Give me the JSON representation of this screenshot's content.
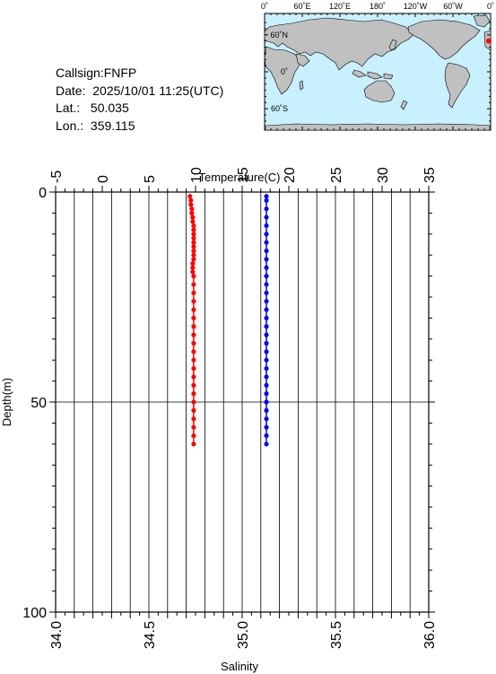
{
  "info": {
    "callsign": "Callsign:FNFP",
    "date": "Date:  2025/10/01 11:25(UTC)",
    "lat": "Lat.:   50.035",
    "lon": "Lon.:  359.115"
  },
  "map": {
    "lon_ticks": [
      "0˚",
      "60˚E",
      "120˚E",
      "180˚",
      "120˚W",
      "60˚W",
      "0˚"
    ],
    "lat_ticks": [
      "60˚N",
      "0˚",
      "60˚S"
    ],
    "ocean_color": "#c8f0ff",
    "land_color": "#c0c0c0",
    "marker": {
      "lat": 50.035,
      "lon": 359.115,
      "color": "#ff0000"
    }
  },
  "chart_data": {
    "type": "line",
    "title": "",
    "top_axis": {
      "label": "Temperature(C)",
      "range": [
        -5,
        35
      ],
      "ticks": [
        "-5",
        "0",
        "5",
        "10",
        "15",
        "20",
        "25",
        "30",
        "35"
      ]
    },
    "bottom_axis": {
      "label": "Salinity",
      "range": [
        34.0,
        36.0
      ],
      "ticks": [
        "34.0",
        "34.5",
        "35.0",
        "35.5",
        "36.0"
      ]
    },
    "y_axis": {
      "label": "Depth(m)",
      "range": [
        0,
        100
      ],
      "inverted": true,
      "ticks": [
        "0",
        "50",
        "100"
      ]
    },
    "grid": true,
    "series": [
      {
        "axis": "temperature",
        "color": "#ff0000",
        "points": [
          [
            9.4,
            1
          ],
          [
            9.5,
            2
          ],
          [
            9.5,
            3
          ],
          [
            9.6,
            4
          ],
          [
            9.6,
            5
          ],
          [
            9.7,
            6
          ],
          [
            9.7,
            7
          ],
          [
            9.8,
            8
          ],
          [
            9.8,
            9
          ],
          [
            9.8,
            10
          ],
          [
            9.8,
            11
          ],
          [
            9.8,
            12
          ],
          [
            9.8,
            13
          ],
          [
            9.8,
            14
          ],
          [
            9.8,
            15
          ],
          [
            9.8,
            16
          ],
          [
            9.7,
            17
          ],
          [
            9.7,
            18
          ],
          [
            9.7,
            19
          ],
          [
            9.8,
            20
          ],
          [
            9.8,
            22
          ],
          [
            9.8,
            24
          ],
          [
            9.8,
            26
          ],
          [
            9.8,
            28
          ],
          [
            9.8,
            30
          ],
          [
            9.8,
            32
          ],
          [
            9.8,
            34
          ],
          [
            9.8,
            36
          ],
          [
            9.8,
            38
          ],
          [
            9.8,
            40
          ],
          [
            9.8,
            42
          ],
          [
            9.8,
            44
          ],
          [
            9.8,
            46
          ],
          [
            9.8,
            48
          ],
          [
            9.8,
            50
          ],
          [
            9.8,
            52
          ],
          [
            9.8,
            54
          ],
          [
            9.8,
            56
          ],
          [
            9.8,
            58
          ],
          [
            9.8,
            60
          ]
        ]
      },
      {
        "axis": "salinity",
        "color": "#0000ff",
        "points": [
          [
            35.13,
            1
          ],
          [
            35.13,
            2
          ],
          [
            35.13,
            4
          ],
          [
            35.13,
            6
          ],
          [
            35.13,
            8
          ],
          [
            35.13,
            10
          ],
          [
            35.13,
            12
          ],
          [
            35.13,
            14
          ],
          [
            35.13,
            16
          ],
          [
            35.13,
            18
          ],
          [
            35.13,
            20
          ],
          [
            35.13,
            22
          ],
          [
            35.13,
            24
          ],
          [
            35.13,
            26
          ],
          [
            35.13,
            28
          ],
          [
            35.13,
            30
          ],
          [
            35.13,
            32
          ],
          [
            35.13,
            34
          ],
          [
            35.13,
            36
          ],
          [
            35.13,
            38
          ],
          [
            35.13,
            40
          ],
          [
            35.13,
            42
          ],
          [
            35.13,
            44
          ],
          [
            35.13,
            46
          ],
          [
            35.13,
            48
          ],
          [
            35.13,
            50
          ],
          [
            35.13,
            52
          ],
          [
            35.13,
            54
          ],
          [
            35.13,
            56
          ],
          [
            35.13,
            58
          ],
          [
            35.13,
            60
          ]
        ]
      }
    ]
  }
}
